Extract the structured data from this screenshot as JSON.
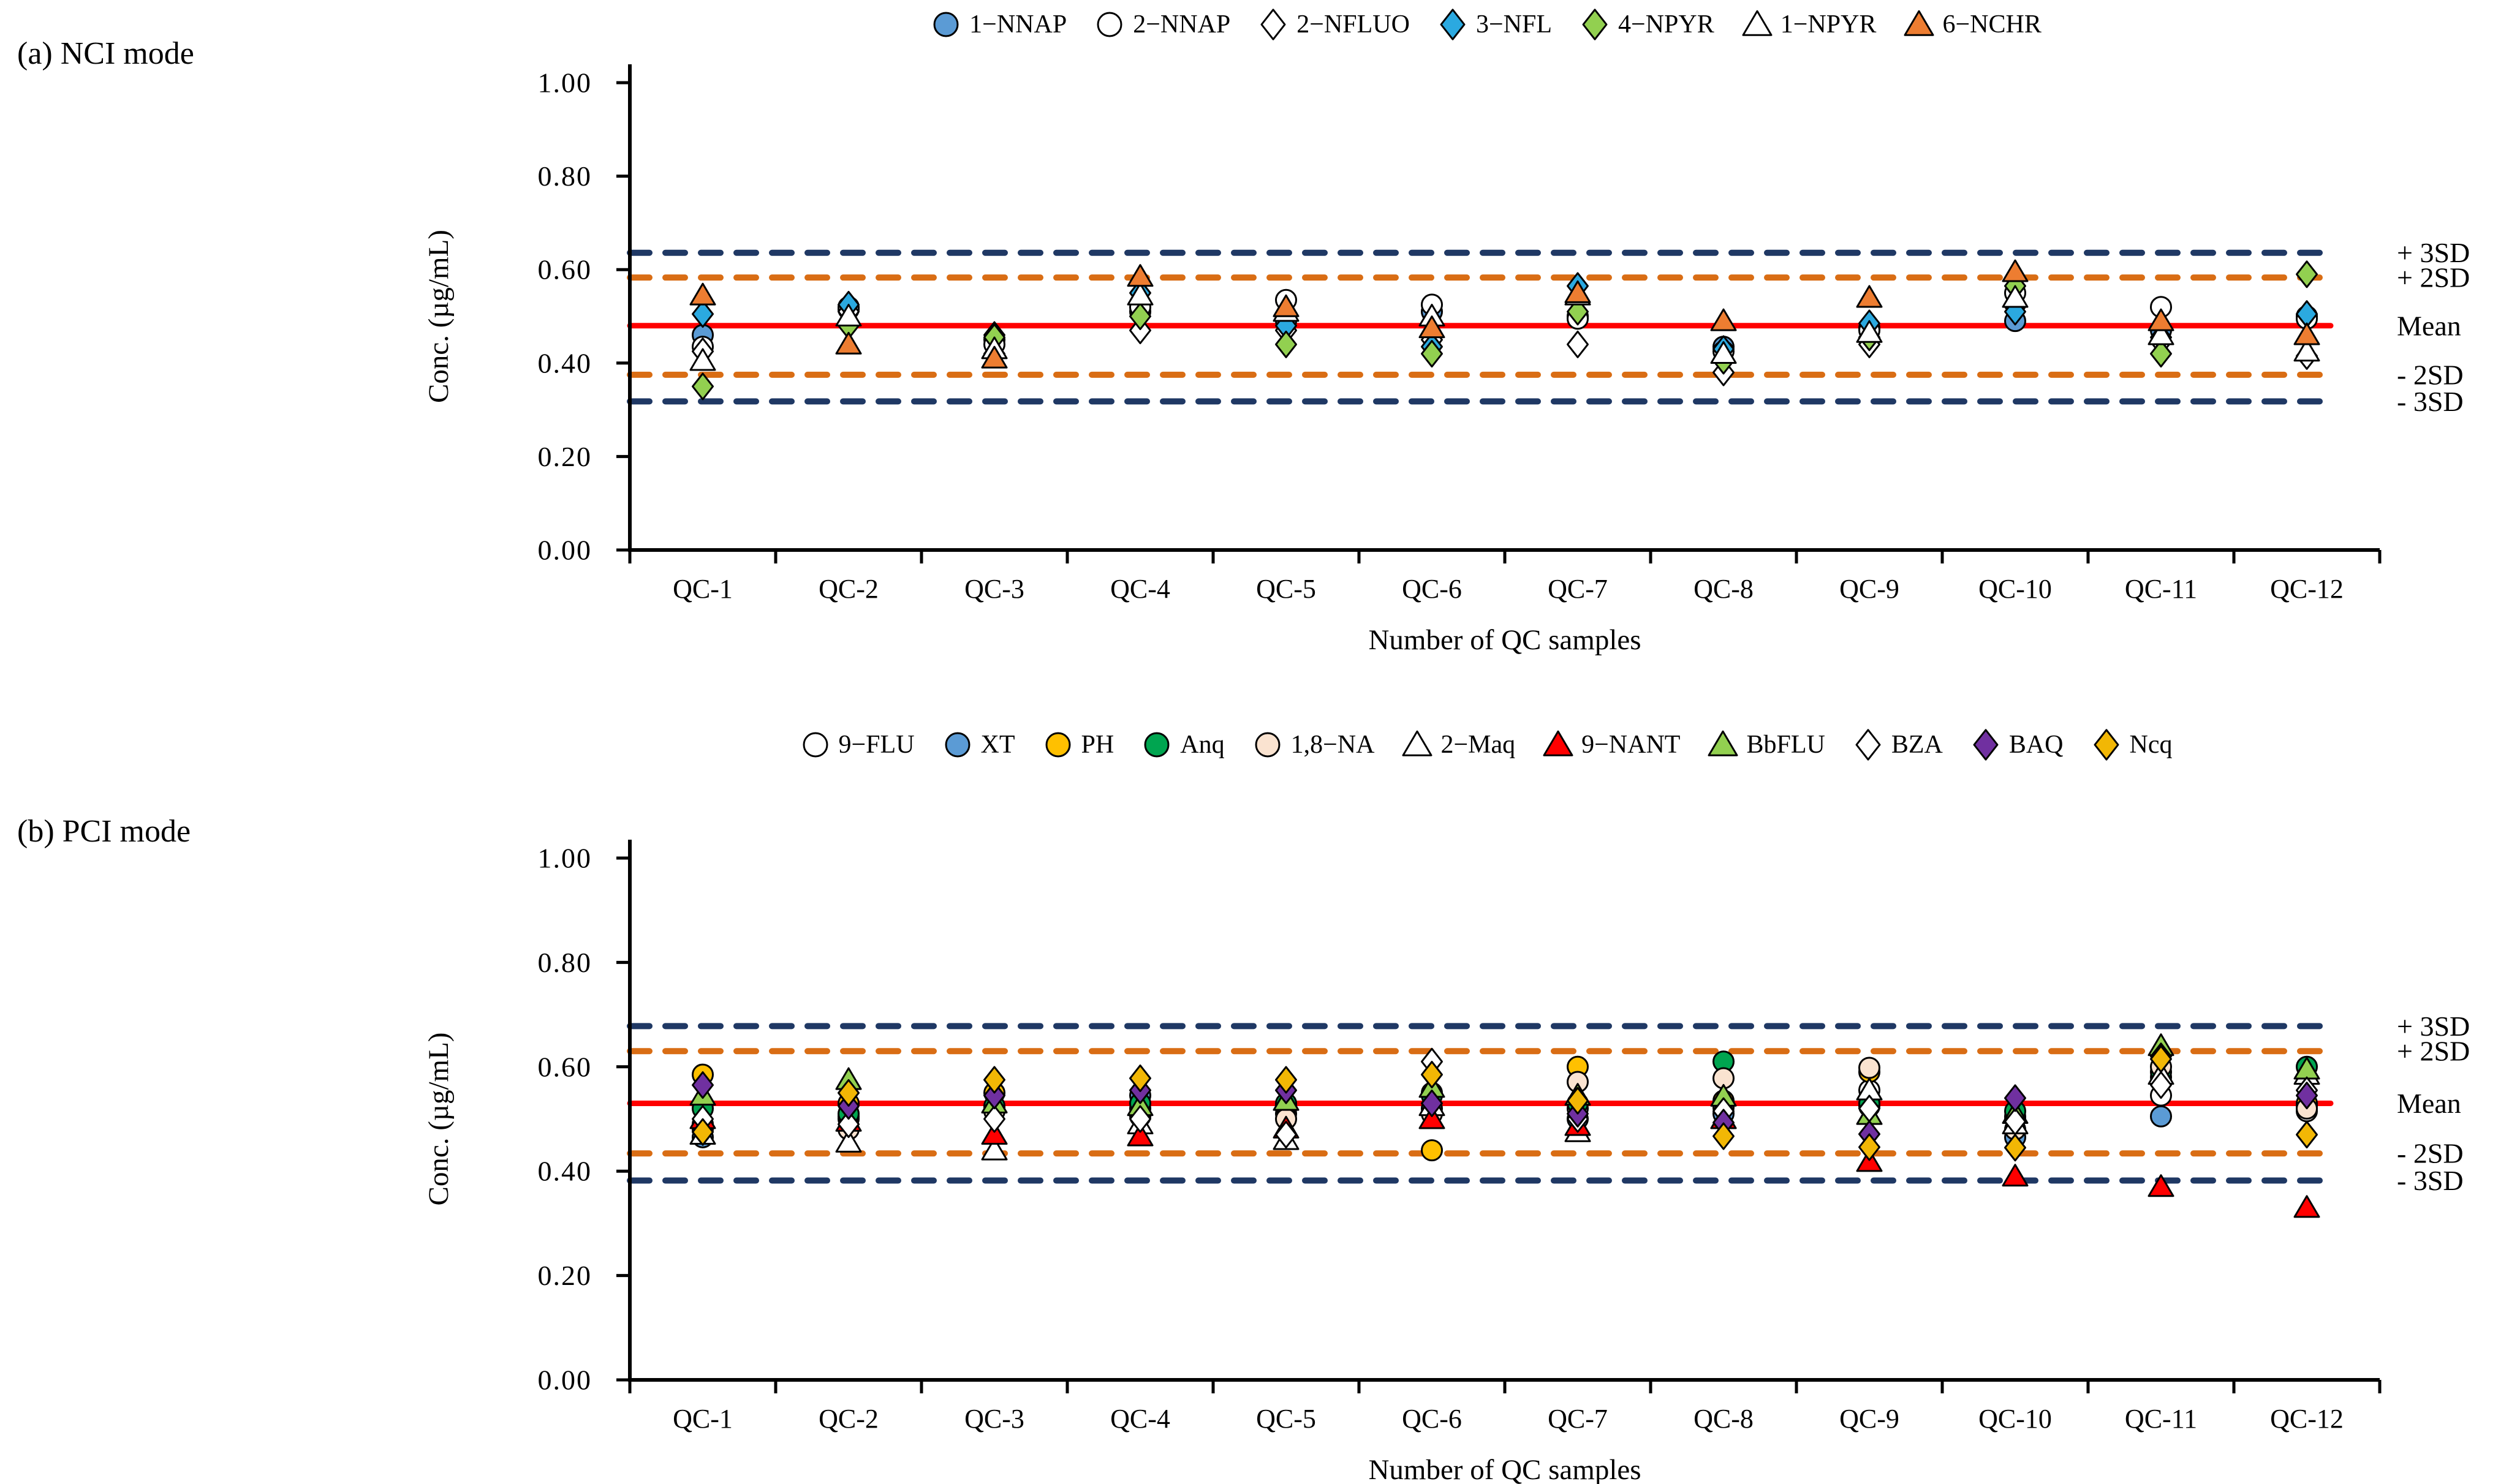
{
  "chart_data": [
    {
      "type": "scatter",
      "panel_label": "(a) NCI mode",
      "y_axis": {
        "title": "Conc. (µg/mL)",
        "tick_labels": [
          "1.00",
          "0.80",
          "0.60",
          "0.40",
          "0.20",
          "0.00"
        ],
        "tick_values": [
          1.0,
          0.8,
          0.6,
          0.4,
          0.2,
          0.0
        ],
        "min": 0.0,
        "max": 1.0
      },
      "x_axis": {
        "title": "Number of QC samples",
        "categories": [
          "QC-1",
          "QC-2",
          "QC-3",
          "QC-4",
          "QC-5",
          "QC-6",
          "QC-7",
          "QC-8",
          "QC-9",
          "QC-10",
          "QC-11",
          "QC-12"
        ]
      },
      "control_lines": [
        {
          "id": "plus_3sd",
          "label": "+ 3SD",
          "value": 0.636,
          "color": "#1F3864",
          "style": "dashed"
        },
        {
          "id": "plus_2sd",
          "label": "+ 2SD",
          "value": 0.583,
          "color": "#D96D14",
          "style": "dashed"
        },
        {
          "id": "mean",
          "label": "Mean",
          "value": 0.48,
          "color": "#FF0000",
          "style": "solid"
        },
        {
          "id": "minus_2sd",
          "label": "- 2SD",
          "value": 0.375,
          "color": "#D96D14",
          "style": "dashed"
        },
        {
          "id": "minus_3sd",
          "label": "- 3SD",
          "value": 0.318,
          "color": "#1F3864",
          "style": "dashed"
        }
      ],
      "series": [
        {
          "name": "1−NNAP",
          "marker": "circle",
          "fill": "#5B9BD5",
          "values": [
            0.46,
            0.52,
            0.45,
            0.51,
            0.49,
            0.51,
            0.5,
            0.435,
            0.475,
            0.49,
            0.47,
            0.5
          ]
        },
        {
          "name": "2−NNAP",
          "marker": "circle",
          "fill": "#FFFFFF",
          "values": [
            0.435,
            0.515,
            0.44,
            0.52,
            0.535,
            0.525,
            0.495,
            0.425,
            0.47,
            0.55,
            0.52,
            0.495
          ]
        },
        {
          "name": "2−NFLUO",
          "marker": "diamond",
          "fill": "#FFFFFF",
          "values": [
            0.425,
            0.51,
            0.42,
            0.47,
            0.47,
            0.45,
            0.44,
            0.38,
            0.44,
            0.52,
            0.445,
            0.415
          ]
        },
        {
          "name": "3−NFL",
          "marker": "diamond",
          "fill": "#2BA9E0",
          "values": [
            0.505,
            0.525,
            0.46,
            0.55,
            0.48,
            0.435,
            0.565,
            0.43,
            0.485,
            0.51,
            0.455,
            0.505
          ]
        },
        {
          "name": "4−NPYR",
          "marker": "diamond",
          "fill": "#92D050",
          "values": [
            0.35,
            0.48,
            0.455,
            0.5,
            0.44,
            0.42,
            0.51,
            0.405,
            0.455,
            0.565,
            0.42,
            0.59
          ]
        },
        {
          "name": "1−NPYR",
          "marker": "triangle",
          "fill": "#FFFFFF",
          "values": [
            0.405,
            0.5,
            0.43,
            0.545,
            0.51,
            0.5,
            0.545,
            0.42,
            0.465,
            0.54,
            0.46,
            0.425
          ]
        },
        {
          "name": "6−NCHR",
          "marker": "triangle",
          "fill": "#ED7D31",
          "values": [
            0.545,
            0.44,
            0.41,
            0.585,
            0.52,
            0.475,
            0.55,
            0.49,
            0.54,
            0.595,
            0.49,
            0.46
          ]
        }
      ]
    },
    {
      "type": "scatter",
      "panel_label": "(b) PCI mode",
      "y_axis": {
        "title": "Conc. (µg/mL)",
        "tick_labels": [
          "1.00",
          "0.80",
          "0.60",
          "0.40",
          "0.20",
          "0.00"
        ],
        "tick_values": [
          1.0,
          0.8,
          0.6,
          0.4,
          0.2,
          0.0
        ],
        "min": 0.0,
        "max": 1.0
      },
      "x_axis": {
        "title": "Number of QC samples",
        "categories": [
          "QC-1",
          "QC-2",
          "QC-3",
          "QC-4",
          "QC-5",
          "QC-6",
          "QC-7",
          "QC-8",
          "QC-9",
          "QC-10",
          "QC-11",
          "QC-12"
        ]
      },
      "control_lines": [
        {
          "id": "plus_3sd",
          "label": "+ 3SD",
          "value": 0.678,
          "color": "#1F3864",
          "style": "dashed"
        },
        {
          "id": "plus_2sd",
          "label": "+ 2SD",
          "value": 0.63,
          "color": "#D96D14",
          "style": "dashed"
        },
        {
          "id": "mean",
          "label": "Mean",
          "value": 0.53,
          "color": "#FF0000",
          "style": "solid"
        },
        {
          "id": "minus_2sd",
          "label": "- 2SD",
          "value": 0.434,
          "color": "#D96D14",
          "style": "dashed"
        },
        {
          "id": "minus_3sd",
          "label": "- 3SD",
          "value": 0.382,
          "color": "#1F3864",
          "style": "dashed"
        }
      ],
      "series": [
        {
          "name": "9−FLU",
          "marker": "circle",
          "fill": "#FFFFFF",
          "values": [
            0.48,
            0.5,
            0.52,
            0.505,
            0.51,
            0.55,
            0.52,
            0.522,
            0.555,
            0.5,
            0.545,
            0.515
          ]
        },
        {
          "name": "XT",
          "marker": "circle",
          "fill": "#5B9BD5",
          "values": [
            0.465,
            0.505,
            0.515,
            0.545,
            0.52,
            0.52,
            0.5,
            0.51,
            0.524,
            0.465,
            0.505,
            0.525
          ]
        },
        {
          "name": "PH",
          "marker": "circle",
          "fill": "#FFC000",
          "values": [
            0.585,
            0.53,
            0.55,
            0.52,
            0.525,
            0.44,
            0.6,
            0.535,
            0.59,
            0.505,
            0.58,
            0.53
          ]
        },
        {
          "name": "Anq",
          "marker": "circle",
          "fill": "#00A550",
          "values": [
            0.52,
            0.51,
            0.525,
            0.53,
            0.53,
            0.545,
            0.53,
            0.61,
            0.53,
            0.515,
            0.59,
            0.6
          ]
        },
        {
          "name": "1,8−NA",
          "marker": "circle",
          "fill": "#FAE3D0",
          "values": [
            0.49,
            0.48,
            0.515,
            0.51,
            0.5,
            0.51,
            0.571,
            0.578,
            0.598,
            0.48,
            0.6,
            0.52
          ]
        },
        {
          "name": "2−Maq",
          "marker": "triangle",
          "fill": "#FFFFFF",
          "values": [
            0.47,
            0.455,
            0.44,
            0.49,
            0.46,
            0.525,
            0.475,
            0.5,
            0.555,
            0.49,
            0.585,
            0.585
          ]
        },
        {
          "name": "9−NANT",
          "marker": "triangle",
          "fill": "#FF0000",
          "values": [
            0.5,
            0.495,
            0.47,
            0.467,
            0.482,
            0.5,
            0.487,
            0.5,
            0.418,
            0.39,
            0.37,
            0.33
          ]
        },
        {
          "name": "BbFLU",
          "marker": "triangle",
          "fill": "#92D050",
          "values": [
            0.545,
            0.575,
            0.53,
            0.525,
            0.535,
            0.56,
            0.545,
            0.543,
            0.508,
            0.51,
            0.64,
            0.595
          ]
        },
        {
          "name": "BZA",
          "marker": "diamond",
          "fill": "#FFFFFF",
          "values": [
            0.5,
            0.49,
            0.5,
            0.5,
            0.47,
            0.61,
            0.5,
            0.515,
            0.52,
            0.495,
            0.565,
            0.555
          ]
        },
        {
          "name": "BAQ",
          "marker": "diamond",
          "fill": "#7030A0",
          "values": [
            0.565,
            0.525,
            0.545,
            0.555,
            0.555,
            0.53,
            0.51,
            0.493,
            0.471,
            0.54,
            0.62,
            0.545
          ]
        },
        {
          "name": "Ncq",
          "marker": "diamond",
          "fill": "#F2B705",
          "values": [
            0.475,
            0.55,
            0.575,
            0.578,
            0.575,
            0.585,
            0.535,
            0.467,
            0.446,
            0.445,
            0.615,
            0.47
          ]
        }
      ]
    }
  ]
}
